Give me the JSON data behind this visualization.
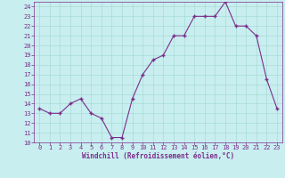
{
  "x": [
    0,
    1,
    2,
    3,
    4,
    5,
    6,
    7,
    8,
    9,
    10,
    11,
    12,
    13,
    14,
    15,
    16,
    17,
    18,
    19,
    20,
    21,
    22,
    23
  ],
  "y": [
    13.5,
    13,
    13,
    14,
    14.5,
    13,
    12.5,
    10.5,
    10.5,
    14.5,
    17,
    18.5,
    19,
    21,
    21,
    23,
    23,
    23,
    24.5,
    22,
    22,
    21,
    16.5,
    13.5
  ],
  "line_color": "#7b2d8b",
  "marker": "+",
  "marker_size": 3.5,
  "marker_linewidth": 1.0,
  "bg_color": "#c8eef0",
  "grid_color": "#a0d8d0",
  "xlabel": "Windchill (Refroidissement éolien,°C)",
  "xlabel_color": "#7b2d8b",
  "tick_color": "#7b2d8b",
  "spine_color": "#7b2d8b",
  "xlim": [
    -0.5,
    23.5
  ],
  "ylim": [
    10,
    24.5
  ],
  "yticks": [
    10,
    11,
    12,
    13,
    14,
    15,
    16,
    17,
    18,
    19,
    20,
    21,
    22,
    23,
    24
  ],
  "xticks": [
    0,
    1,
    2,
    3,
    4,
    5,
    6,
    7,
    8,
    9,
    10,
    11,
    12,
    13,
    14,
    15,
    16,
    17,
    18,
    19,
    20,
    21,
    22,
    23
  ],
  "tick_fontsize": 5,
  "xlabel_fontsize": 5.5,
  "linewidth": 0.8
}
